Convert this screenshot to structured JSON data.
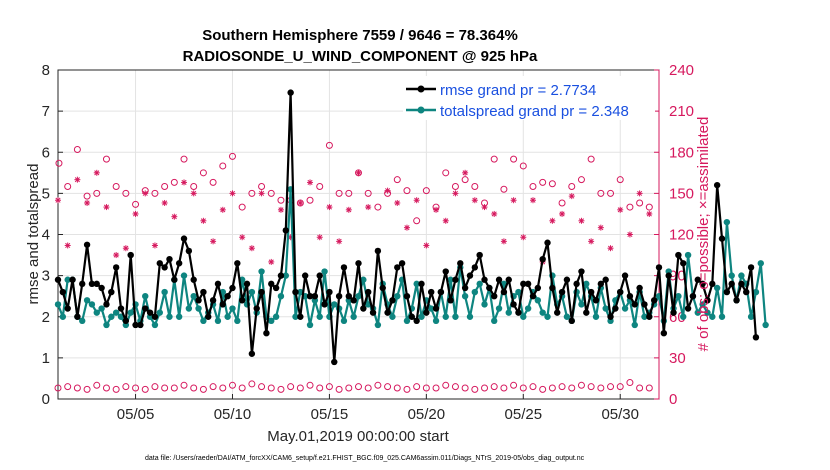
{
  "colors": {
    "rmse": "#000000",
    "spread": "#0e8580",
    "obs": "#d6195e",
    "legend_text": "#1a50e0",
    "grid": "#e3e3e3"
  },
  "chart_data": {
    "type": "line",
    "title_line1": "Southern Hemisphere 7559 / 9646 = 78.364%",
    "title_line2": "RADIOSONDE_U_WIND_COMPONENT @ 925 hPa",
    "xlabel": "May.01,2019 00:00:00 start",
    "ylabel_left": "rmse and totalspread",
    "ylabel_right": "# of obs: o=possible; ×=assimilated",
    "footnote": "data file: /Users/raeder/DAI/ATM_forcXX/CAM6_setup/f.e21.FHIST_BGC.f09_025.CAM6assim.011/Diags_NTrS_2019-05/obs_diag_output.nc",
    "xlim": [
      1,
      32
    ],
    "xticks": [
      5,
      10,
      15,
      20,
      25,
      30
    ],
    "xticklabels": [
      "05/05",
      "05/10",
      "05/15",
      "05/20",
      "05/25",
      "05/30"
    ],
    "ylim_left": [
      0,
      8
    ],
    "yticks_left": [
      0,
      1,
      2,
      3,
      4,
      5,
      6,
      7,
      8
    ],
    "ylim_right": [
      0,
      240
    ],
    "yticks_right": [
      0,
      30,
      60,
      90,
      120,
      150,
      180,
      210,
      240
    ],
    "x_step": 0.25,
    "x_start": 1.0,
    "legend": [
      {
        "name": "rmse grand pr = 2.7734",
        "series": "rmse"
      },
      {
        "name": "totalspread grand pr = 2.348",
        "series": "spread"
      }
    ],
    "series": [
      {
        "name": "rmse",
        "axis": "left",
        "values": [
          2.9,
          2.6,
          2.2,
          2.9,
          2.0,
          2.8,
          3.75,
          2.8,
          2.8,
          2.7,
          2.3,
          2.6,
          3.2,
          2.2,
          1.9,
          3.5,
          1.8,
          1.8,
          2.2,
          2.1,
          2.0,
          3.3,
          3.2,
          3.4,
          2.9,
          3.3,
          3.9,
          3.6,
          2.9,
          2.4,
          2.6,
          2.0,
          2.4,
          2.8,
          2.3,
          2.5,
          2.7,
          3.3,
          2.4,
          2.8,
          1.1,
          2.2,
          2.6,
          1.6,
          2.8,
          2.7,
          3.0,
          4.1,
          7.45,
          2.6,
          2.0,
          3.0,
          2.5,
          2.5,
          3.0,
          2.3,
          2.6,
          0.9,
          2.5,
          3.2,
          2.5,
          2.4,
          3.3,
          2.2,
          2.6,
          2.1,
          3.6,
          2.7,
          2.1,
          2.4,
          3.2,
          3.3,
          2.5,
          2.0,
          1.9,
          2.8,
          2.1,
          2.6,
          2.2,
          2.6,
          3.1,
          2.4,
          2.9,
          3.3,
          2.7,
          3.0,
          3.2,
          3.5,
          2.9,
          2.7,
          2.5,
          2.9,
          2.6,
          2.9,
          2.3,
          2.1,
          2.8,
          2.8,
          2.5,
          2.7,
          3.4,
          3.8,
          2.7,
          2.1,
          2.6,
          2.9,
          1.9,
          2.8,
          3.1,
          2.1,
          2.6,
          2.4,
          2.8,
          2.9,
          2.0,
          2.2,
          2.6,
          3.0,
          2.5,
          2.3,
          2.7,
          2.3,
          2.0,
          2.4,
          3.2,
          1.6,
          3.0,
          2.1,
          3.5,
          3.3,
          2.2,
          2.5,
          2.9,
          2.8,
          2.4,
          2.8,
          5.2,
          3.9,
          2.6,
          2.8,
          2.4,
          2.8,
          2.6,
          3.2,
          1.5
        ]
      },
      {
        "name": "totalspread",
        "axis": "left",
        "values": [
          2.3,
          2.0,
          2.9,
          2.9,
          2.0,
          1.9,
          2.4,
          2.3,
          2.1,
          2.2,
          1.8,
          2.0,
          2.1,
          2.0,
          1.8,
          2.1,
          2.3,
          1.9,
          2.5,
          2.0,
          1.8,
          2.1,
          2.6,
          2.0,
          2.9,
          2.0,
          3.0,
          2.2,
          2.5,
          2.2,
          1.9,
          2.1,
          2.3,
          1.9,
          2.6,
          2.0,
          2.2,
          1.9,
          2.9,
          2.3,
          2.6,
          2.1,
          3.1,
          2.0,
          1.9,
          2.0,
          2.5,
          3.0,
          5.1,
          2.0,
          2.6,
          2.5,
          1.8,
          2.4,
          2.0,
          3.1,
          2.0,
          2.3,
          2.2,
          1.9,
          2.4,
          2.0,
          2.5,
          2.9,
          2.3,
          2.2,
          1.8,
          2.8,
          2.3,
          2.0,
          2.5,
          2.9,
          1.9,
          2.2,
          2.8,
          2.0,
          2.4,
          2.2,
          1.9,
          2.6,
          2.0,
          2.9,
          2.0,
          3.2,
          2.5,
          2.0,
          2.6,
          2.8,
          2.3,
          2.7,
          1.9,
          2.2,
          2.8,
          2.1,
          2.5,
          2.6,
          2.0,
          2.2,
          2.6,
          2.4,
          2.1,
          2.0,
          3.0,
          2.3,
          2.5,
          2.0,
          1.9,
          2.6,
          2.3,
          2.8,
          2.5,
          2.0,
          2.7,
          2.2,
          1.9,
          2.4,
          2.6,
          2.2,
          2.4,
          1.8,
          2.6,
          2.0,
          2.1,
          2.3,
          2.5,
          1.9,
          3.1,
          2.2,
          2.5,
          2.0,
          3.5,
          2.5,
          2.1,
          2.3,
          2.1,
          2.0,
          2.7,
          2.0,
          4.3,
          3.0,
          2.4,
          3.0,
          2.8,
          2.0,
          2.6,
          3.3,
          1.8
        ]
      },
      {
        "name": "possible",
        "axis": "right",
        "marker": "o",
        "x": [
          1.05,
          1.5,
          2.0,
          2.5,
          3.0,
          3.5,
          4.0,
          4.5,
          5.0,
          5.5,
          6.0,
          6.5,
          7.0,
          7.5,
          8.0,
          8.5,
          9.0,
          9.5,
          10.0,
          10.5,
          11.0,
          11.5,
          12.0,
          12.5,
          13.0,
          13.5,
          14.0,
          14.5,
          15.0,
          15.5,
          16.0,
          16.5,
          17.0,
          17.5,
          18.0,
          18.5,
          19.0,
          19.5,
          20.0,
          20.5,
          21.0,
          21.5,
          22.0,
          22.5,
          23.0,
          23.5,
          24.0,
          24.5,
          25.0,
          25.5,
          26.0,
          26.5,
          27.0,
          27.5,
          28.0,
          28.5,
          29.0,
          29.5,
          30.0,
          30.5,
          31.0,
          31.5
        ],
        "values": [
          172,
          155,
          182,
          148,
          150,
          175,
          155,
          150,
          142,
          152,
          150,
          155,
          158,
          175,
          155,
          165,
          158,
          170,
          177,
          140,
          150,
          155,
          150,
          145,
          145,
          143,
          145,
          155,
          185,
          150,
          150,
          165,
          150,
          140,
          150,
          160,
          152,
          130,
          152,
          140,
          165,
          155,
          160,
          155,
          143,
          175,
          153,
          175,
          170,
          155,
          158,
          157,
          143,
          155,
          160,
          175,
          150,
          150,
          160,
          140,
          143,
          140
        ]
      },
      {
        "name": "assimilated",
        "axis": "right",
        "marker": "*",
        "x": [
          1.0,
          1.5,
          2.0,
          2.5,
          3.0,
          3.5,
          4.0,
          4.5,
          5.0,
          5.5,
          6.0,
          6.5,
          7.0,
          7.5,
          8.0,
          8.5,
          9.0,
          9.5,
          10.0,
          10.5,
          11.0,
          11.5,
          12.0,
          12.5,
          13.0,
          13.5,
          14.0,
          14.5,
          15.0,
          15.5,
          16.0,
          16.5,
          17.0,
          17.5,
          18.0,
          18.5,
          19.0,
          19.5,
          20.0,
          20.5,
          21.0,
          21.5,
          22.0,
          22.5,
          23.0,
          23.5,
          24.0,
          24.5,
          25.0,
          25.5,
          26.0,
          26.5,
          27.0,
          27.5,
          28.0,
          28.5,
          29.0,
          29.5,
          30.0,
          30.5,
          31.0,
          31.5
        ],
        "values": [
          145,
          112,
          160,
          143,
          165,
          140,
          105,
          110,
          135,
          150,
          112,
          143,
          133,
          158,
          150,
          130,
          115,
          138,
          150,
          118,
          110,
          150,
          100,
          138,
          118,
          143,
          158,
          118,
          140,
          115,
          138,
          165,
          140,
          108,
          152,
          143,
          125,
          145,
          112,
          138,
          130,
          150,
          165,
          145,
          140,
          135,
          115,
          145,
          118,
          145,
          100,
          130,
          135,
          148,
          130,
          115,
          125,
          110,
          138,
          120,
          150,
          135
        ]
      },
      {
        "name": "possible_low",
        "axis": "right",
        "marker": "o",
        "x": [
          1.0,
          1.5,
          2.0,
          2.5,
          3.0,
          3.5,
          4.0,
          4.5,
          5.0,
          5.5,
          6.0,
          6.5,
          7.0,
          7.5,
          8.0,
          8.5,
          9.0,
          9.5,
          10.0,
          10.5,
          11.0,
          11.5,
          12.0,
          12.5,
          13.0,
          13.5,
          14.0,
          14.5,
          15.0,
          15.5,
          16.0,
          16.5,
          17.0,
          17.5,
          18.0,
          18.5,
          19.0,
          19.5,
          20.0,
          20.5,
          21.0,
          21.5,
          22.0,
          22.5,
          23.0,
          23.5,
          24.0,
          24.5,
          25.0,
          25.5,
          26.0,
          26.5,
          27.0,
          27.5,
          28.0,
          28.5,
          29.0,
          29.5,
          30.0,
          30.5,
          31.0,
          31.5
        ],
        "values": [
          8,
          9,
          8,
          7,
          10,
          8,
          7,
          9,
          8,
          7,
          9,
          8,
          8,
          10,
          8,
          7,
          9,
          8,
          10,
          8,
          11,
          9,
          8,
          7,
          9,
          8,
          10,
          8,
          9,
          7,
          8,
          9,
          8,
          10,
          9,
          8,
          7,
          9,
          8,
          8,
          10,
          9,
          8,
          7,
          8,
          9,
          8,
          10,
          8,
          9,
          7,
          8,
          9,
          8,
          10,
          9,
          8,
          9,
          9,
          12,
          8,
          8
        ]
      }
    ]
  }
}
